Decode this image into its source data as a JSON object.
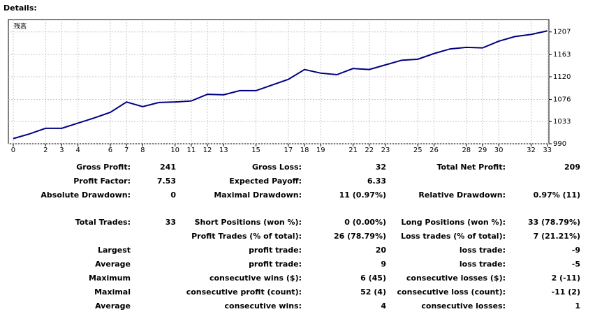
{
  "heading": "Details:",
  "chart_data": {
    "type": "line",
    "label": "残高",
    "x": [
      0,
      1,
      2,
      3,
      4,
      5,
      6,
      7,
      8,
      9,
      10,
      11,
      12,
      13,
      14,
      15,
      16,
      17,
      18,
      19,
      20,
      21,
      22,
      23,
      24,
      25,
      26,
      27,
      28,
      29,
      30,
      31,
      32,
      33
    ],
    "series": [
      {
        "color": "#000080",
        "values": [
          1000,
          1009,
          1020,
          1020,
          1030,
          1040,
          1051,
          1071,
          1062,
          1070,
          1071,
          1073,
          1086,
          1085,
          1093,
          1093,
          1104,
          1115,
          1134,
          1127,
          1124,
          1136,
          1134,
          1143,
          1152,
          1154,
          1165,
          1174,
          1177,
          1176,
          1189,
          1198,
          1202,
          1209
        ]
      }
    ],
    "xlim": [
      -0.3,
      33.1
    ],
    "xticks": [
      0,
      2,
      3,
      4,
      6,
      7,
      8,
      10,
      11,
      12,
      13,
      15,
      17,
      18,
      19,
      21,
      22,
      23,
      25,
      26,
      28,
      29,
      30,
      32,
      33
    ],
    "ylim": [
      990,
      1231
    ],
    "yticks": [
      990,
      1033,
      1076,
      1120,
      1163,
      1207
    ],
    "grid": true
  },
  "table": {
    "rows": [
      [
        "Gross Profit:",
        "241",
        "Gross Loss:",
        "32",
        "Total Net Profit:",
        "209"
      ],
      [
        "Profit Factor:",
        "7.53",
        "Expected Payoff:",
        "6.33",
        null,
        null
      ],
      [
        "Absolute Drawdown:",
        "0",
        "Maximal Drawdown:",
        "11 (0.97%)",
        "Relative Drawdown:",
        "0.97% (11)"
      ],
      [
        "Total Trades:",
        "33",
        "Short Positions (won %):",
        "0 (0.00%)",
        "Long Positions (won %):",
        "33 (78.79%)"
      ],
      [
        null,
        null,
        "Profit Trades (% of total):",
        "26 (78.79%)",
        "Loss trades (% of total):",
        "7 (21.21%)"
      ],
      [
        "Largest",
        null,
        "profit trade:",
        "20",
        "loss trade:",
        "-9"
      ],
      [
        "Average",
        null,
        "profit trade:",
        "9",
        "loss trade:",
        "-5"
      ],
      [
        "Maximum",
        null,
        "consecutive wins ($):",
        "6 (45)",
        "consecutive losses ($):",
        "2 (-11)"
      ],
      [
        "Maximal",
        null,
        "consecutive profit (count):",
        "52 (4)",
        "consecutive loss (count):",
        "-11 (2)"
      ],
      [
        "Average",
        null,
        "consecutive wins:",
        "4",
        "consecutive losses:",
        "1"
      ]
    ]
  }
}
